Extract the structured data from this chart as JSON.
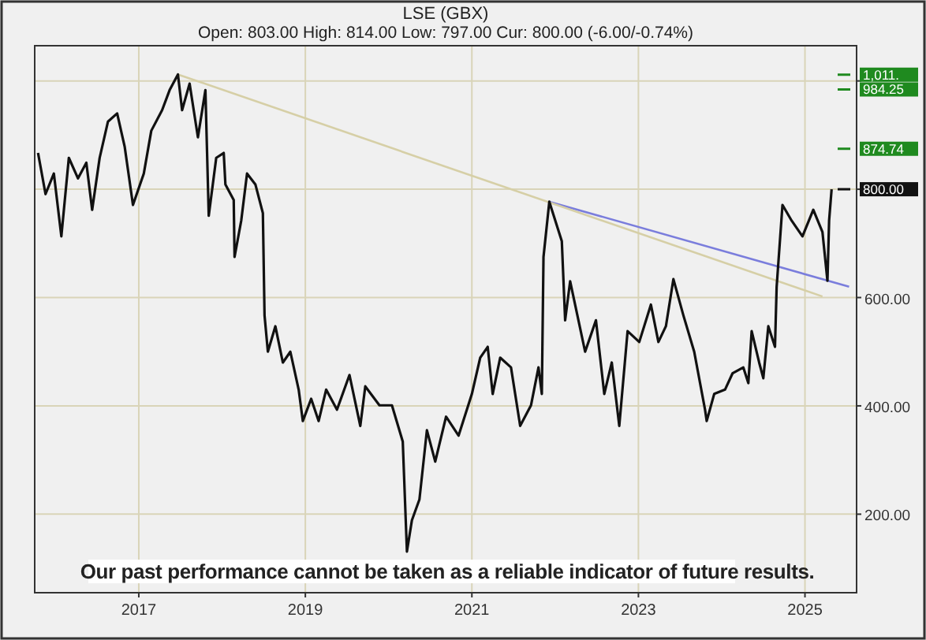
{
  "chart_data": {
    "type": "line",
    "title": "LSE (GBX)",
    "subtitle": "Open: 803.00 High: 814.00 Low: 797.00 Cur: 800.00 (-6.00/-0.74%)",
    "annotations": [
      "Our past performance cannot be taken as a reliable indicator of future results."
    ],
    "xlim": [
      2015.75,
      2025.62
    ],
    "xticks": [
      2017,
      2019,
      2021,
      2023,
      2025
    ],
    "ylim": [
      55,
      1065
    ],
    "yticks": [
      {
        "value": 200,
        "label": "200.00"
      },
      {
        "value": 400,
        "label": "400.00"
      },
      {
        "value": 600,
        "label": "600.00"
      },
      {
        "value": 800,
        "label": null
      },
      {
        "value": 1000,
        "label": null
      }
    ],
    "grid": true,
    "marker": "none",
    "line_style": "solid",
    "ref_lines": [
      {
        "axis": "y",
        "value": 1011.5,
        "label": "1,011.",
        "color": "#1f8a1f"
      },
      {
        "axis": "y",
        "value": 984.25,
        "label": "984.25",
        "color": "#1f8a1f"
      },
      {
        "axis": "y",
        "value": 874.74,
        "label": "874.74",
        "color": "#1f8a1f"
      },
      {
        "axis": "y",
        "value": 800,
        "label": "800.00",
        "color": "#111111"
      }
    ],
    "series": [
      {
        "color": "#111111",
        "x": [
          2015.79,
          2015.88,
          2015.98,
          2016.07,
          2016.16,
          2016.27,
          2016.37,
          2016.44,
          2016.53,
          2016.63,
          2016.74,
          2016.83,
          2016.93,
          2017.06,
          2017.15,
          2017.28,
          2017.37,
          2017.47,
          2017.52,
          2017.61,
          2017.71,
          2017.8,
          2017.84,
          2017.93,
          2018.02,
          2018.04,
          2018.14,
          2018.15,
          2018.23,
          2018.3,
          2018.4,
          2018.49,
          2018.51,
          2018.55,
          2018.64,
          2018.73,
          2018.82,
          2018.92,
          2018.97,
          2019.07,
          2019.16,
          2019.25,
          2019.38,
          2019.53,
          2019.66,
          2019.72,
          2019.89,
          2020.04,
          2020.17,
          2020.22,
          2020.28,
          2020.37,
          2020.46,
          2020.56,
          2020.69,
          2020.84,
          2021.0,
          2021.1,
          2021.19,
          2021.25,
          2021.34,
          2021.47,
          2021.58,
          2021.71,
          2021.8,
          2021.84,
          2021.86,
          2021.93,
          2022.08,
          2022.12,
          2022.18,
          2022.36,
          2022.49,
          2022.59,
          2022.68,
          2022.77,
          2022.87,
          2023.01,
          2023.15,
          2023.24,
          2023.33,
          2023.42,
          2023.54,
          2023.67,
          2023.8,
          2023.82,
          2023.91,
          2024.04,
          2024.13,
          2024.26,
          2024.32,
          2024.36,
          2024.45,
          2024.5,
          2024.56,
          2024.64,
          2024.66,
          2024.73,
          2024.84,
          2024.97,
          2025.1,
          2025.21,
          2025.27,
          2025.29,
          2025.32
        ],
        "values": [
          867,
          791,
          829,
          713,
          858,
          820,
          849,
          762,
          858,
          925,
          940,
          879,
          771,
          829,
          908,
          946,
          983,
          1012,
          946,
          995,
          896,
          983,
          751,
          858,
          867,
          809,
          780,
          675,
          742,
          829,
          809,
          756,
          567,
          500,
          547,
          480,
          500,
          430,
          372,
          413,
          372,
          430,
          393,
          457,
          363,
          436,
          401,
          401,
          334,
          131,
          189,
          227,
          355,
          297,
          380,
          345,
          422,
          489,
          509,
          422,
          489,
          471,
          363,
          401,
          471,
          422,
          675,
          777,
          704,
          558,
          630,
          500,
          558,
          422,
          480,
          363,
          538,
          518,
          587,
          518,
          547,
          634,
          567,
          500,
          393,
          372,
          422,
          430,
          460,
          471,
          442,
          538,
          480,
          451,
          547,
          509,
          620,
          771,
          742,
          713,
          762,
          721,
          631,
          742,
          800
        ]
      },
      {
        "type": "line",
        "color": "#d6cfa6",
        "x": [
          2017.47,
          2025.21
        ],
        "values": [
          1012,
          602
        ]
      },
      {
        "type": "line",
        "color": "#7a7ddc",
        "x": [
          2021.93,
          2025.53
        ],
        "values": [
          777,
          620
        ]
      }
    ]
  }
}
